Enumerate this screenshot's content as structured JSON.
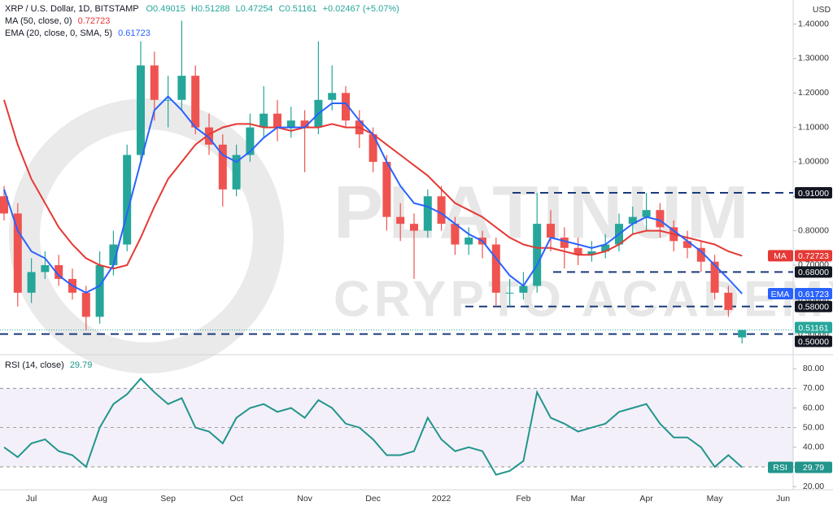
{
  "header": {
    "symbol": "XRP / U.S. Dollar, 1D, BITSTAMP",
    "open": "O0.49015",
    "high": "H0.51288",
    "low": "L0.47254",
    "close": "C0.51161",
    "change": "+0.02467 (+5.07%)",
    "currency": "USD"
  },
  "watermark": {
    "line1": "PLATINUM",
    "line2": "CRYPTO ACADEMY"
  },
  "chart_data": [
    {
      "type": "candlestick",
      "categories": [
        null,
        null,
        "Jul",
        null,
        null,
        null,
        null,
        "Aug",
        null,
        null,
        null,
        null,
        "Sep",
        null,
        null,
        null,
        null,
        "Oct",
        null,
        null,
        null,
        null,
        "Nov",
        null,
        null,
        null,
        null,
        "Dec",
        null,
        null,
        null,
        null,
        "2022",
        null,
        null,
        null,
        null,
        null,
        "Feb",
        null,
        null,
        null,
        "Mar",
        null,
        null,
        null,
        null,
        "Apr",
        null,
        null,
        null,
        null,
        "May",
        null,
        null,
        null,
        null,
        "Jun"
      ],
      "open": [
        0.9,
        0.85,
        0.62,
        0.68,
        0.7,
        0.66,
        0.62,
        0.55,
        0.7,
        0.76,
        1.02,
        1.28,
        1.18,
        1.18,
        1.25,
        1.1,
        1.05,
        0.92,
        1.02,
        1.1,
        1.14,
        1.1,
        1.12,
        1.1,
        1.18,
        1.2,
        1.12,
        1.08,
        1.0,
        0.84,
        0.82,
        0.8,
        0.9,
        0.82,
        0.76,
        0.78,
        0.76,
        0.62,
        0.62,
        0.64,
        0.82,
        0.78,
        0.75,
        0.73,
        0.74,
        0.76,
        0.82,
        0.84,
        0.86,
        0.81,
        0.77,
        0.75,
        0.71,
        0.62,
        0.49015,
        null,
        null,
        null
      ],
      "high": [
        0.93,
        0.88,
        0.72,
        0.74,
        0.73,
        0.69,
        0.64,
        0.74,
        0.8,
        1.05,
        1.35,
        1.32,
        1.25,
        1.41,
        1.28,
        1.14,
        1.08,
        1.05,
        1.14,
        1.22,
        1.18,
        1.16,
        1.15,
        1.35,
        1.28,
        1.22,
        1.15,
        1.1,
        1.02,
        0.88,
        0.85,
        0.92,
        0.93,
        0.84,
        0.81,
        0.8,
        0.78,
        0.66,
        0.68,
        0.91,
        0.86,
        0.81,
        0.78,
        0.77,
        0.79,
        0.85,
        0.87,
        0.91,
        0.88,
        0.83,
        0.8,
        0.77,
        0.73,
        0.64,
        0.51288,
        null,
        null,
        null
      ],
      "low": [
        0.83,
        0.58,
        0.59,
        0.66,
        0.64,
        0.6,
        0.51,
        0.53,
        0.67,
        0.74,
        1.0,
        1.12,
        1.1,
        1.15,
        1.08,
        1.02,
        0.87,
        0.9,
        1.0,
        1.07,
        1.06,
        1.07,
        0.97,
        1.08,
        1.15,
        1.1,
        1.04,
        0.97,
        0.8,
        0.77,
        0.66,
        0.78,
        0.8,
        0.73,
        0.73,
        0.72,
        0.58,
        0.58,
        0.6,
        0.62,
        0.74,
        0.69,
        0.7,
        0.71,
        0.72,
        0.74,
        0.79,
        0.8,
        0.78,
        0.74,
        0.72,
        0.68,
        0.6,
        0.55,
        0.47254,
        null,
        null,
        null
      ],
      "close": [
        0.85,
        0.62,
        0.68,
        0.7,
        0.66,
        0.62,
        0.55,
        0.7,
        0.76,
        1.02,
        1.28,
        1.18,
        1.18,
        1.25,
        1.1,
        1.05,
        0.92,
        1.02,
        1.1,
        1.14,
        1.1,
        1.12,
        1.1,
        1.18,
        1.2,
        1.12,
        1.08,
        1.0,
        0.84,
        0.82,
        0.8,
        0.9,
        0.82,
        0.76,
        0.78,
        0.76,
        0.62,
        0.62,
        0.64,
        0.82,
        0.78,
        0.75,
        0.73,
        0.74,
        0.76,
        0.82,
        0.84,
        0.86,
        0.81,
        0.77,
        0.75,
        0.71,
        0.62,
        0.57,
        0.51161,
        null,
        null,
        null
      ],
      "up_color": "#26a69a",
      "down_color": "#ef5350",
      "series": [
        {
          "name": "MA (50, close, 0)",
          "short_name": "MA",
          "last_label": "0.72723",
          "color": "#e53935",
          "values": [
            1.18,
            1.05,
            0.95,
            0.88,
            0.81,
            0.76,
            0.72,
            0.7,
            0.69,
            0.7,
            0.78,
            0.87,
            0.95,
            1.0,
            1.05,
            1.08,
            1.1,
            1.11,
            1.11,
            1.1,
            1.1,
            1.09,
            1.1,
            1.1,
            1.11,
            1.1,
            1.1,
            1.08,
            1.05,
            1.02,
            0.99,
            0.96,
            0.92,
            0.88,
            0.86,
            0.84,
            0.81,
            0.78,
            0.76,
            0.75,
            0.75,
            0.74,
            0.73,
            0.73,
            0.74,
            0.76,
            0.79,
            0.8,
            0.8,
            0.79,
            0.78,
            0.77,
            0.76,
            0.74,
            0.72723,
            null,
            null,
            null
          ]
        },
        {
          "name": "EMA (20, close, 0, SMA, 5)",
          "short_name": "EMA",
          "last_label": "0.61723",
          "color": "#2962ff",
          "values": [
            0.92,
            0.8,
            0.74,
            0.72,
            0.67,
            0.64,
            0.62,
            0.64,
            0.7,
            0.85,
            1.0,
            1.15,
            1.19,
            1.15,
            1.1,
            1.07,
            1.02,
            1.0,
            1.03,
            1.07,
            1.1,
            1.1,
            1.1,
            1.14,
            1.17,
            1.17,
            1.12,
            1.08,
            1.0,
            0.93,
            0.88,
            0.87,
            0.85,
            0.82,
            0.79,
            0.77,
            0.72,
            0.67,
            0.64,
            0.7,
            0.78,
            0.77,
            0.76,
            0.75,
            0.76,
            0.79,
            0.82,
            0.84,
            0.83,
            0.8,
            0.77,
            0.74,
            0.7,
            0.66,
            0.61723,
            null,
            null,
            null
          ]
        }
      ],
      "last_price_label": "0.51161",
      "levels": [
        {
          "value": 0.91,
          "label": "0.91000"
        },
        {
          "value": 0.68,
          "label": "0.68000"
        },
        {
          "value": 0.58,
          "label": "0.58000"
        },
        {
          "value": 0.5,
          "label": "0.50000"
        }
      ],
      "ylim": [
        0.44,
        1.47
      ],
      "yticks": [
        {
          "value": 0.5,
          "label": "0.50000"
        },
        {
          "value": 0.6,
          "label": "0.60000"
        },
        {
          "value": 0.7,
          "label": "0.70000"
        },
        {
          "value": 0.8,
          "label": "0.80000"
        },
        {
          "value": 0.9,
          "label": "0.90000"
        },
        {
          "value": 1.0,
          "label": "1.00000"
        },
        {
          "value": 1.1,
          "label": "1.10000"
        },
        {
          "value": 1.2,
          "label": "1.20000"
        },
        {
          "value": 1.3,
          "label": "1.30000"
        },
        {
          "value": 1.4,
          "label": "1.40000"
        }
      ]
    },
    {
      "type": "line",
      "title": "RSI (14, close)",
      "short_name": "RSI",
      "last_label": "29.79",
      "color": "#22958c",
      "values": [
        40,
        35,
        42,
        44,
        38,
        36,
        30,
        50,
        62,
        67,
        75,
        68,
        62,
        65,
        50,
        48,
        42,
        55,
        60,
        62,
        58,
        60,
        55,
        64,
        60,
        52,
        50,
        44,
        36,
        36,
        38,
        55,
        44,
        38,
        40,
        38,
        26,
        28,
        33,
        68,
        55,
        52,
        48,
        50,
        52,
        58,
        60,
        62,
        52,
        45,
        45,
        40,
        30,
        36,
        29.79,
        null,
        null,
        null
      ],
      "band": [
        30,
        70
      ],
      "reference_lines": [
        30,
        50,
        70
      ],
      "ylim": [
        18.8,
        86.7
      ],
      "yticks": [
        {
          "value": 20,
          "label": "20.00"
        },
        {
          "value": 30,
          "label": "30.00"
        },
        {
          "value": 40,
          "label": "40.00"
        },
        {
          "value": 50,
          "label": "50.00"
        },
        {
          "value": 60,
          "label": "60.00"
        },
        {
          "value": 70,
          "label": "70.00"
        },
        {
          "value": 80,
          "label": "80.00"
        }
      ]
    }
  ]
}
